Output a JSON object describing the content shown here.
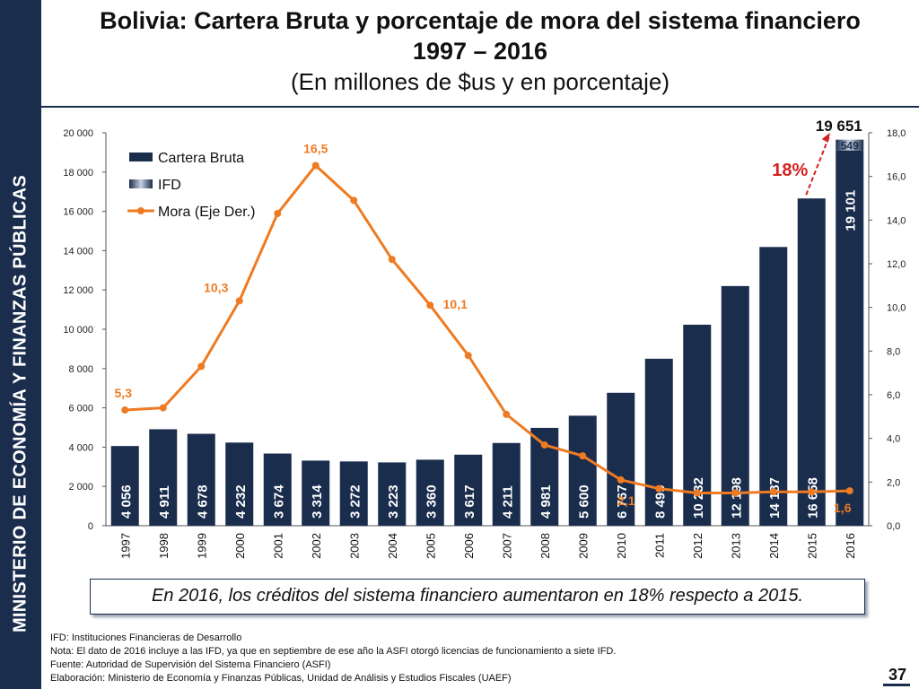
{
  "sidebar": {
    "text": "MINISTERIO DE ECONOMÍA Y FINANZAS PÚBLICAS"
  },
  "header": {
    "title_line1": "Bolivia: Cartera Bruta y porcentaje de mora del sistema financiero",
    "title_line2": "1997 – 2016",
    "subtitle": "(En millones de $us y en porcentaje)"
  },
  "chart_data": {
    "type": "bar",
    "categories": [
      "1997",
      "1998",
      "1999",
      "2000",
      "2001",
      "2002",
      "2003",
      "2004",
      "2005",
      "2006",
      "2007",
      "2008",
      "2009",
      "2010",
      "2011",
      "2012",
      "2013",
      "2014",
      "2015",
      "2016"
    ],
    "series": [
      {
        "name": "Cartera Bruta",
        "type": "bar",
        "axis": "left",
        "values": [
          4056,
          4911,
          4678,
          4232,
          3674,
          3314,
          3272,
          3223,
          3360,
          3617,
          4211,
          4981,
          5600,
          6767,
          8499,
          10232,
          12198,
          14187,
          16658,
          19101
        ],
        "labels": [
          "4 056",
          "4 911",
          "4 678",
          "4 232",
          "3 674",
          "3 314",
          "3 272",
          "3 223",
          "3 360",
          "3 617",
          "4 211",
          "4 981",
          "5 600",
          "6 767",
          "8 499",
          "10 232",
          "12 198",
          "14 187",
          "16 658",
          "19 101"
        ]
      },
      {
        "name": "IFD",
        "type": "bar-stack",
        "axis": "left",
        "values": [
          0,
          0,
          0,
          0,
          0,
          0,
          0,
          0,
          0,
          0,
          0,
          0,
          0,
          0,
          0,
          0,
          0,
          0,
          0,
          549
        ],
        "label_2016": "549"
      },
      {
        "name": "Mora (Eje Der.)",
        "type": "line",
        "axis": "right",
        "values": [
          5.3,
          5.4,
          7.3,
          10.3,
          14.3,
          16.5,
          14.9,
          12.2,
          10.1,
          7.8,
          5.1,
          3.7,
          3.2,
          2.1,
          1.7,
          1.5,
          1.5,
          1.55,
          1.55,
          1.6
        ],
        "point_labels": {
          "0": "5,3",
          "3": "10,3",
          "5": "16,5",
          "8": "10,1",
          "13": "2,1",
          "19": "1,6"
        }
      }
    ],
    "y_left": {
      "min": 0,
      "max": 20000,
      "ticks": [
        "0",
        "2 000",
        "4 000",
        "6 000",
        "8 000",
        "10 000",
        "12 000",
        "14 000",
        "16 000",
        "18 000",
        "20 000"
      ]
    },
    "y_right": {
      "min": 0,
      "max": 18,
      "ticks": [
        "0,0",
        "2,0",
        "4,0",
        "6,0",
        "8,0",
        "10,0",
        "12,0",
        "14,0",
        "16,0",
        "18,0"
      ]
    },
    "total_2016_label": "19 651",
    "growth_label": "18%",
    "legend_position": "top-left",
    "grid": false,
    "colors": {
      "bar": "#1a2d4d",
      "ifd": "#8a96aa",
      "line": "#ee7b22",
      "growth": "#d6201f"
    }
  },
  "callout": {
    "text": "En 2016, los créditos del sistema financiero aumentaron en 18% respecto a 2015."
  },
  "footnotes": {
    "ifd": "IFD: Instituciones Financieras de Desarrollo",
    "nota": "Nota: El dato de 2016 incluye a las IFD, ya que en septiembre de ese año la ASFI otorgó licencias de funcionamiento a siete IFD.",
    "fuente": "Fuente: Autoridad de Supervisión del Sistema Financiero (ASFI)",
    "elaboracion": "Elaboración: Ministerio de Economía y Finanzas Públicas, Unidad de Análisis y Estudios Fiscales (UAEF)"
  },
  "page_number": "37"
}
